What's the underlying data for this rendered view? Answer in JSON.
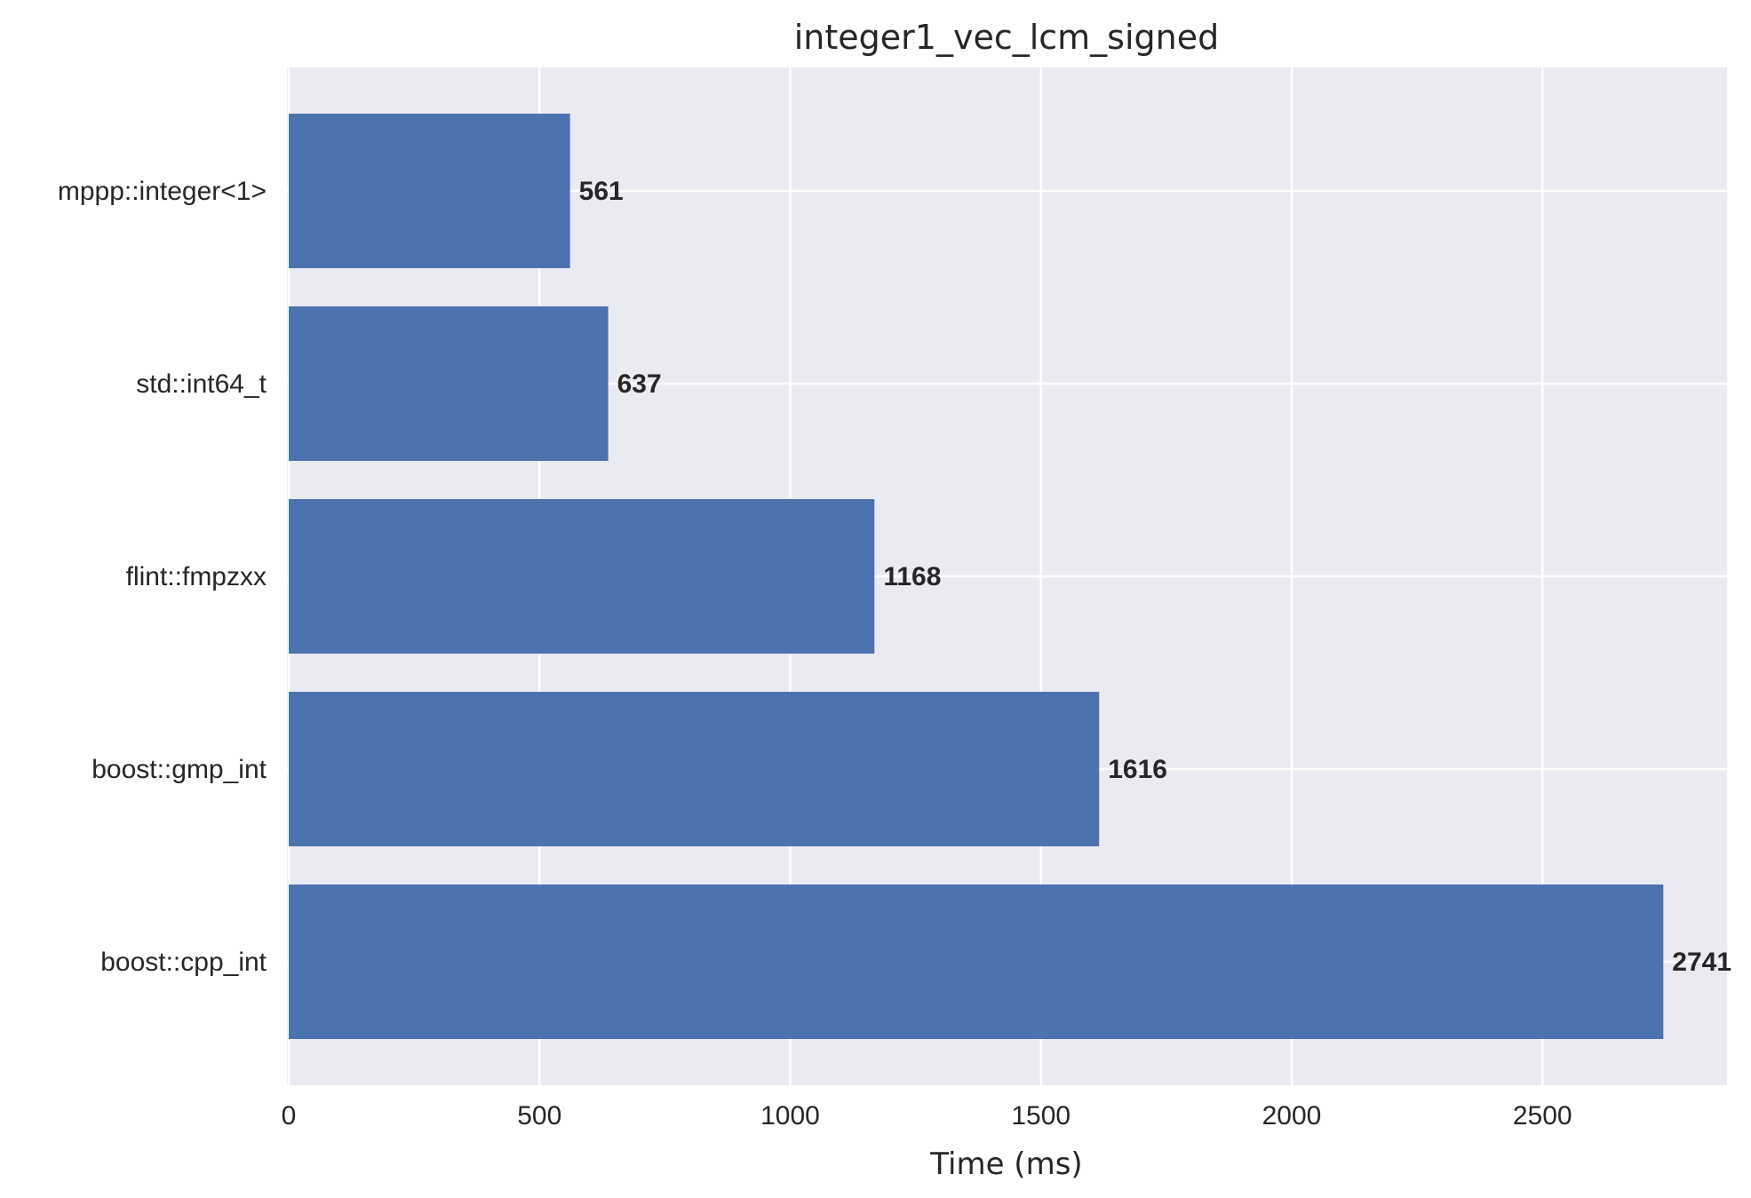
{
  "chart_data": {
    "type": "bar",
    "orientation": "horizontal",
    "title": "integer1_vec_lcm_signed",
    "xlabel": "Time (ms)",
    "ylabel": "",
    "categories": [
      "mppp::integer<1>",
      "std::int64_t",
      "flint::fmpzxx",
      "boost::gmp_int",
      "boost::cpp_int"
    ],
    "values": [
      561,
      637,
      1168,
      1616,
      2741
    ],
    "value_labels": [
      "561",
      "637",
      "1168",
      "1616",
      "2741"
    ],
    "xlim": [
      0,
      2878
    ],
    "xticks": [
      0,
      500,
      1000,
      1500,
      2000,
      2500
    ],
    "xtick_labels": [
      "0",
      "500",
      "1000",
      "1500",
      "2000",
      "2500"
    ],
    "grid": true,
    "bar_color": "#4c72b0",
    "background_color": "#eaeaf2",
    "grid_color": "#ffffff"
  }
}
